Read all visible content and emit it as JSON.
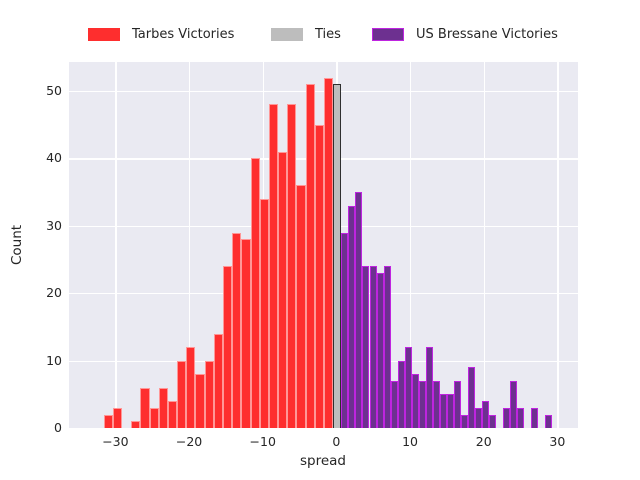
{
  "figure": {
    "xlabel": "spread",
    "ylabel": "Count",
    "x_tick_labels": [
      "−30",
      "−20",
      "−10",
      "0",
      "10",
      "20",
      "30"
    ],
    "x_tick_values": [
      -30,
      -20,
      -10,
      0,
      10,
      20,
      30
    ],
    "y_tick_labels": [
      "0",
      "10",
      "20",
      "30",
      "40",
      "50"
    ],
    "y_tick_values": [
      0,
      10,
      20,
      30,
      40,
      50
    ],
    "colors": {
      "axes_background": "#eaeaf2",
      "grid": "#ffffff",
      "text": "#262626",
      "red_fill": "#fe2e2e",
      "red_edge": "rgba(255,255,255,0.5)",
      "tie_fill": "#bdbdbd",
      "tie_edge": "#2f2f2f",
      "purple_fill": "#6d3090",
      "purple_edge": "#bf24e0"
    },
    "legend": [
      {
        "label": "Tarbes Victories",
        "fill": "#fe2e2e",
        "edge": "none"
      },
      {
        "label": "Ties",
        "fill": "#bdbdbd",
        "edge": "none"
      },
      {
        "label": "US Bressane Victories",
        "fill": "#6d3090",
        "edge": "#bf24e0"
      }
    ]
  },
  "chart_data": {
    "type": "bar",
    "subtype": "histogram",
    "title": "",
    "xlabel": "spread",
    "ylabel": "Count",
    "xlim": [
      -36.3,
      32.8
    ],
    "ylim": [
      0,
      54.3
    ],
    "grid": true,
    "legend_position": "top",
    "series": [
      {
        "name": "Tarbes Victories",
        "fill": "#fe2e2e",
        "edge": "rgba(255,255,255,0.5)",
        "bin_start": -31.58,
        "bin_width": 1.2452,
        "counts": [
          2,
          3,
          0,
          1,
          6,
          3,
          6,
          4,
          10,
          12,
          8,
          10,
          14,
          24,
          29,
          28,
          40,
          34,
          48,
          41,
          48,
          36,
          51,
          45,
          52
        ]
      },
      {
        "name": "Ties",
        "fill": "#bdbdbd",
        "edge": "#2f2f2f",
        "bin_start": -0.45,
        "bin_width": 1.13,
        "counts": [
          51
        ]
      },
      {
        "name": "US Bressane Victories",
        "fill": "#6d3090",
        "edge": "#bf24e0",
        "bin_start": 0.68,
        "bin_width": 0.9538,
        "counts": [
          29,
          33,
          35,
          24,
          24,
          23,
          24,
          7,
          10,
          12,
          8,
          7,
          12,
          7,
          5,
          5,
          7,
          2,
          9,
          3,
          4,
          2,
          0,
          3,
          7,
          3,
          0,
          3,
          0,
          2
        ]
      }
    ]
  }
}
